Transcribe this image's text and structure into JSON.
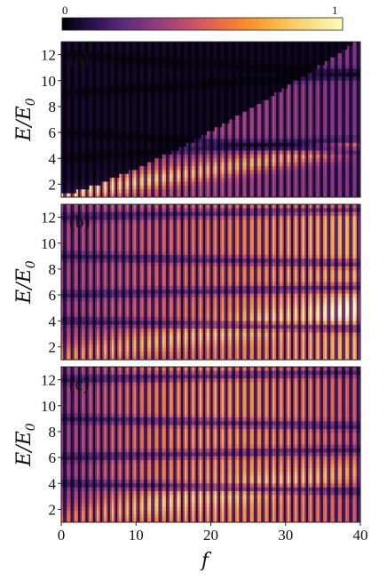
{
  "chart_data": {
    "type": "heatmap",
    "colorbar": {
      "min_label": "0",
      "max_label": "1",
      "colormap": [
        "#000004",
        "#2b1151",
        "#5c2a7a",
        "#8d3a7e",
        "#bf4c6b",
        "#e6674c",
        "#f98e2b",
        "#fbb84a",
        "#f7dc83",
        "#fcfdbf"
      ]
    },
    "shared_x": {
      "label": "f",
      "ticks": [
        "0",
        "10",
        "20",
        "30",
        "40"
      ],
      "range": [
        0,
        40
      ]
    },
    "panels": [
      {
        "id": "a",
        "label": "(a)",
        "ylabel": "E/E0",
        "yticks": [
          "2",
          "4",
          "6",
          "8",
          "10",
          "12"
        ],
        "y_range": [
          1,
          13
        ]
      },
      {
        "id": "b",
        "label": "(b)",
        "ylabel": "E/E0",
        "yticks": [
          "2",
          "4",
          "6",
          "8",
          "10",
          "12"
        ],
        "y_range": [
          1,
          13
        ]
      },
      {
        "id": "c",
        "label": "(c)",
        "ylabel": "E/E0",
        "yticks": [
          "2",
          "4",
          "6",
          "8",
          "10",
          "12"
        ],
        "y_range": [
          1,
          13
        ]
      }
    ]
  }
}
